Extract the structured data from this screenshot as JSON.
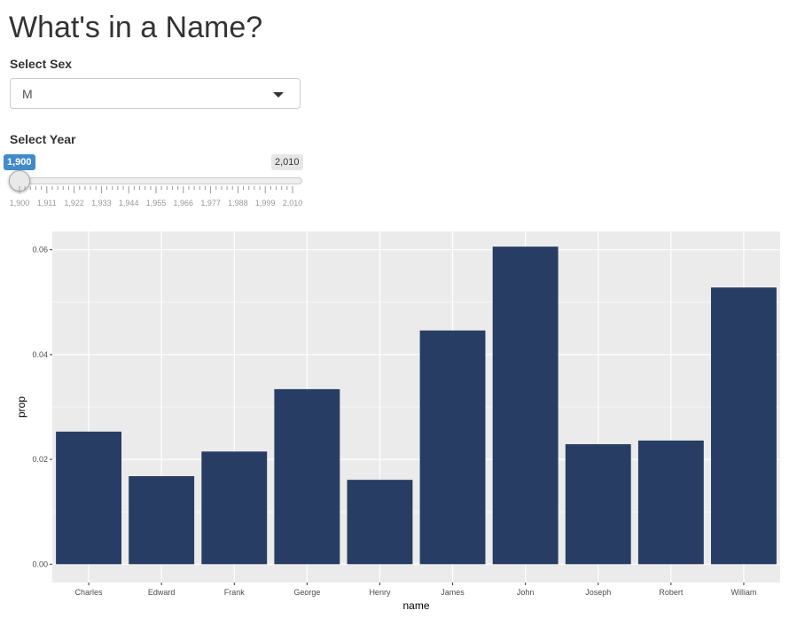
{
  "page": {
    "title": "What's in a Name?"
  },
  "sex_select": {
    "label": "Select Sex",
    "value": "M"
  },
  "year_slider": {
    "label": "Select Year",
    "value": "1,900",
    "max_label": "2,010",
    "min": 1900,
    "max": 2010,
    "current": 1900,
    "tick_labels": [
      "1,900",
      "1,911",
      "1,922",
      "1,933",
      "1,944",
      "1,955",
      "1,966",
      "1,977",
      "1,988",
      "1,999",
      "2,010"
    ]
  },
  "colors": {
    "bar": "#273d64",
    "panel": "#ebebeb",
    "slider_accent": "#428bca"
  },
  "chart_data": {
    "type": "bar",
    "categories": [
      "Charles",
      "Edward",
      "Frank",
      "George",
      "Henry",
      "James",
      "John",
      "Joseph",
      "Robert",
      "William"
    ],
    "values": [
      0.0253,
      0.0168,
      0.0215,
      0.0334,
      0.0161,
      0.0446,
      0.0606,
      0.0229,
      0.0236,
      0.0528
    ],
    "xlabel": "name",
    "ylabel": "prop",
    "ylim": [
      -0.0035,
      0.0635
    ],
    "yticks": [
      0.0,
      0.02,
      0.04,
      0.06
    ],
    "ytick_labels": [
      "0.00",
      "0.02",
      "0.04",
      "0.06"
    ],
    "grid": true,
    "legend": "none"
  }
}
